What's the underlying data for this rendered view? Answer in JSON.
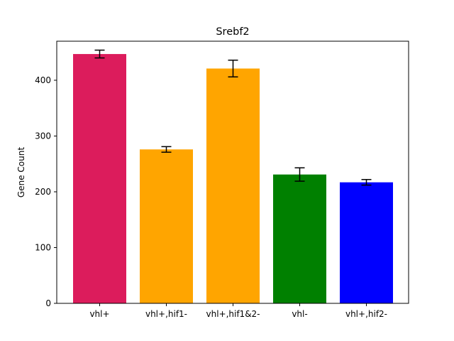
{
  "chart_data": {
    "type": "bar",
    "title": "Srebf2",
    "xlabel": "",
    "ylabel": "Gene Count",
    "categories": [
      "vhl+",
      "vhl+,hif1-",
      "vhl+,hif1&2-",
      "vhl-",
      "vhl+,hif2-"
    ],
    "values": [
      447,
      276,
      421,
      231,
      217
    ],
    "errors": [
      7,
      5,
      15,
      12,
      5
    ],
    "colors": [
      "#dc1c5c",
      "#ffa500",
      "#ffa500",
      "#008000",
      "#0000ff"
    ],
    "ylim": [
      0,
      470
    ],
    "yticks": [
      0,
      100,
      200,
      300,
      400
    ],
    "grid": false
  }
}
